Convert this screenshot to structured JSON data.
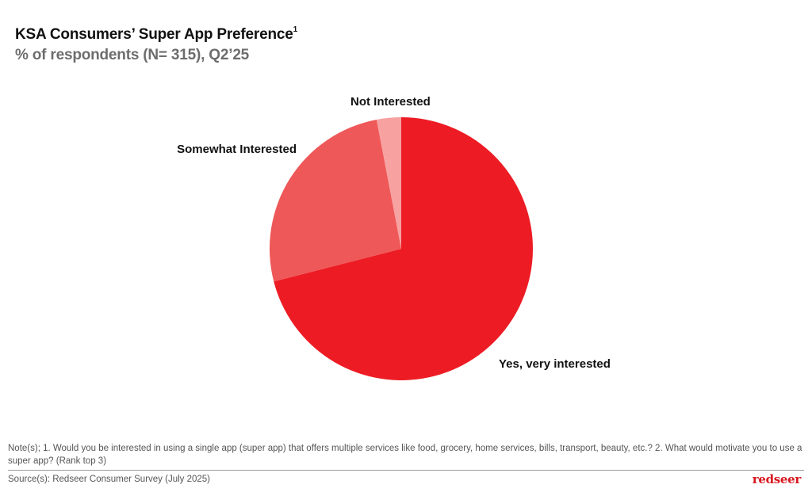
{
  "header": {
    "title": "KSA Consumers’ Super App Preference",
    "title_superscript": "1",
    "subtitle": "% of respondents (N= 315), Q2’25"
  },
  "chart_data": {
    "type": "pie",
    "title": "KSA Consumers’ Super App Preference",
    "subtitle": "% of respondents (N= 315), Q2’25",
    "categories": [
      "Yes, very interested",
      "Somewhat Interested",
      "Not Interested"
    ],
    "values": [
      71,
      26,
      3
    ],
    "colors": [
      "#ed1c24",
      "#ef5858",
      "#f7a1a1"
    ],
    "start_angle": "12 o'clock",
    "direction": "clockwise",
    "legend": "none (direct labels)",
    "data_labels": "category names only"
  },
  "footer": {
    "note": "Note(s); 1. Would you be interested in using a single app (super app) that offers multiple services like food, grocery, home services, bills, transport, beauty, etc.? 2. What would motivate you to use a super app? (Rank top 3)",
    "source": "Source(s): Redseer Consumer Survey (July 2025)",
    "logo_text": "redseer"
  }
}
